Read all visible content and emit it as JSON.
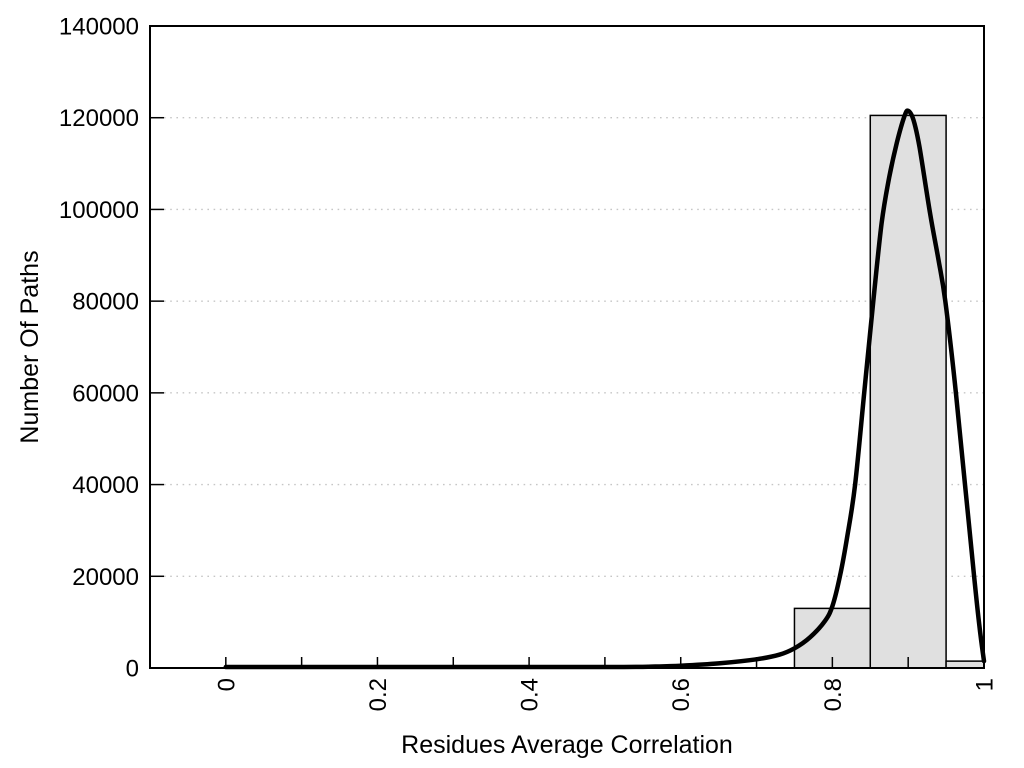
{
  "chart_data": {
    "type": "bar",
    "subtype": "histogram_with_fitted_curve",
    "title": "",
    "xlabel": "Residues Average Correlation",
    "ylabel": "Number Of Paths",
    "xlim": [
      -0.1,
      1.0
    ],
    "ylim": [
      0,
      140000
    ],
    "x_tick_minor_step": 0.1,
    "x_tick_minor_range": [
      0,
      1
    ],
    "x_tick_labels": [
      {
        "value": 0,
        "label": "0"
      },
      {
        "value": 0.2,
        "label": "0.2"
      },
      {
        "value": 0.4,
        "label": "0.4"
      },
      {
        "value": 0.6,
        "label": "0.6"
      },
      {
        "value": 0.8,
        "label": "0.8"
      },
      {
        "value": 1,
        "label": "1"
      }
    ],
    "y_ticks": [
      {
        "value": 0,
        "label": "0"
      },
      {
        "value": 20000,
        "label": "20000"
      },
      {
        "value": 40000,
        "label": "40000"
      },
      {
        "value": 60000,
        "label": "60000"
      },
      {
        "value": 80000,
        "label": "80000"
      },
      {
        "value": 100000,
        "label": "100000"
      },
      {
        "value": 120000,
        "label": "120000"
      },
      {
        "value": 140000,
        "label": "140000"
      }
    ],
    "grid": {
      "horizontal": true,
      "vertical": false,
      "style": "dotted",
      "color": "#c6c6c6"
    },
    "legend": "none",
    "colors": {
      "background": "#ffffff",
      "bar_fill": "#e0e0e0",
      "bar_stroke": "#000000",
      "curve": "#000000",
      "axis": "#000000"
    },
    "bars": [
      {
        "x0": 0.75,
        "x1": 0.85,
        "count": 13000
      },
      {
        "x0": 0.85,
        "x1": 0.95,
        "count": 120500
      },
      {
        "x0": 0.95,
        "x1": 1.0,
        "count": 1500
      }
    ],
    "fit_curve": {
      "name": "fitted-distribution-curve",
      "peak_x": 0.9,
      "peak_y": 121500,
      "points": [
        [
          0.0,
          0
        ],
        [
          0.05,
          0
        ],
        [
          0.1,
          0
        ],
        [
          0.15,
          0
        ],
        [
          0.2,
          0
        ],
        [
          0.25,
          0
        ],
        [
          0.3,
          0
        ],
        [
          0.35,
          0
        ],
        [
          0.4,
          0
        ],
        [
          0.45,
          0
        ],
        [
          0.5,
          100
        ],
        [
          0.55,
          250
        ],
        [
          0.6,
          500
        ],
        [
          0.65,
          1000
        ],
        [
          0.7,
          1900
        ],
        [
          0.73,
          2900
        ],
        [
          0.75,
          4300
        ],
        [
          0.77,
          6600
        ],
        [
          0.79,
          10200
        ],
        [
          0.8,
          13500
        ],
        [
          0.81,
          20000
        ],
        [
          0.82,
          29000
        ],
        [
          0.83,
          40000
        ],
        [
          0.842,
          60000
        ],
        [
          0.854,
          80000
        ],
        [
          0.865,
          97000
        ],
        [
          0.875,
          107000
        ],
        [
          0.885,
          114500
        ],
        [
          0.895,
          120300
        ],
        [
          0.9,
          121500
        ],
        [
          0.907,
          119500
        ],
        [
          0.915,
          113500
        ],
        [
          0.929,
          99000
        ],
        [
          0.94,
          89000
        ],
        [
          0.949,
          80000
        ],
        [
          0.963,
          60000
        ],
        [
          0.975,
          40000
        ],
        [
          0.987,
          20000
        ],
        [
          0.994,
          9000
        ],
        [
          1.0,
          1500
        ]
      ]
    }
  }
}
